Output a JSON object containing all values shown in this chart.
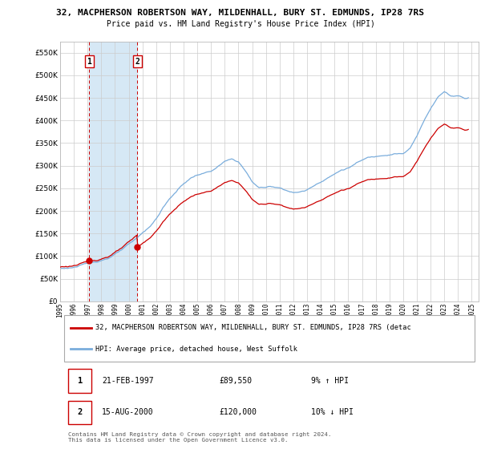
{
  "title": "32, MACPHERSON ROBERTSON WAY, MILDENHALL, BURY ST. EDMUNDS, IP28 7RS",
  "subtitle": "Price paid vs. HM Land Registry's House Price Index (HPI)",
  "ylim": [
    0,
    575000
  ],
  "yticks": [
    0,
    50000,
    100000,
    150000,
    200000,
    250000,
    300000,
    350000,
    400000,
    450000,
    500000,
    550000
  ],
  "xlim_start": 1995.0,
  "xlim_end": 2025.5,
  "hpi_color": "#7aaddc",
  "price_color": "#cc0000",
  "shade_color": "#d6e8f5",
  "grid_color": "#cccccc",
  "background_color": "#ffffff",
  "sale1_date": 1997.13,
  "sale1_price": 89550,
  "sale2_date": 2000.62,
  "sale2_price": 120000,
  "legend_line1": "32, MACPHERSON ROBERTSON WAY, MILDENHALL, BURY ST. EDMUNDS, IP28 7RS (detac",
  "legend_line2": "HPI: Average price, detached house, West Suffolk",
  "table_row1": [
    "1",
    "21-FEB-1997",
    "£89,550",
    "9% ↑ HPI"
  ],
  "table_row2": [
    "2",
    "15-AUG-2000",
    "£120,000",
    "10% ↓ HPI"
  ],
  "footer": "Contains HM Land Registry data © Crown copyright and database right 2024.\nThis data is licensed under the Open Government Licence v3.0."
}
